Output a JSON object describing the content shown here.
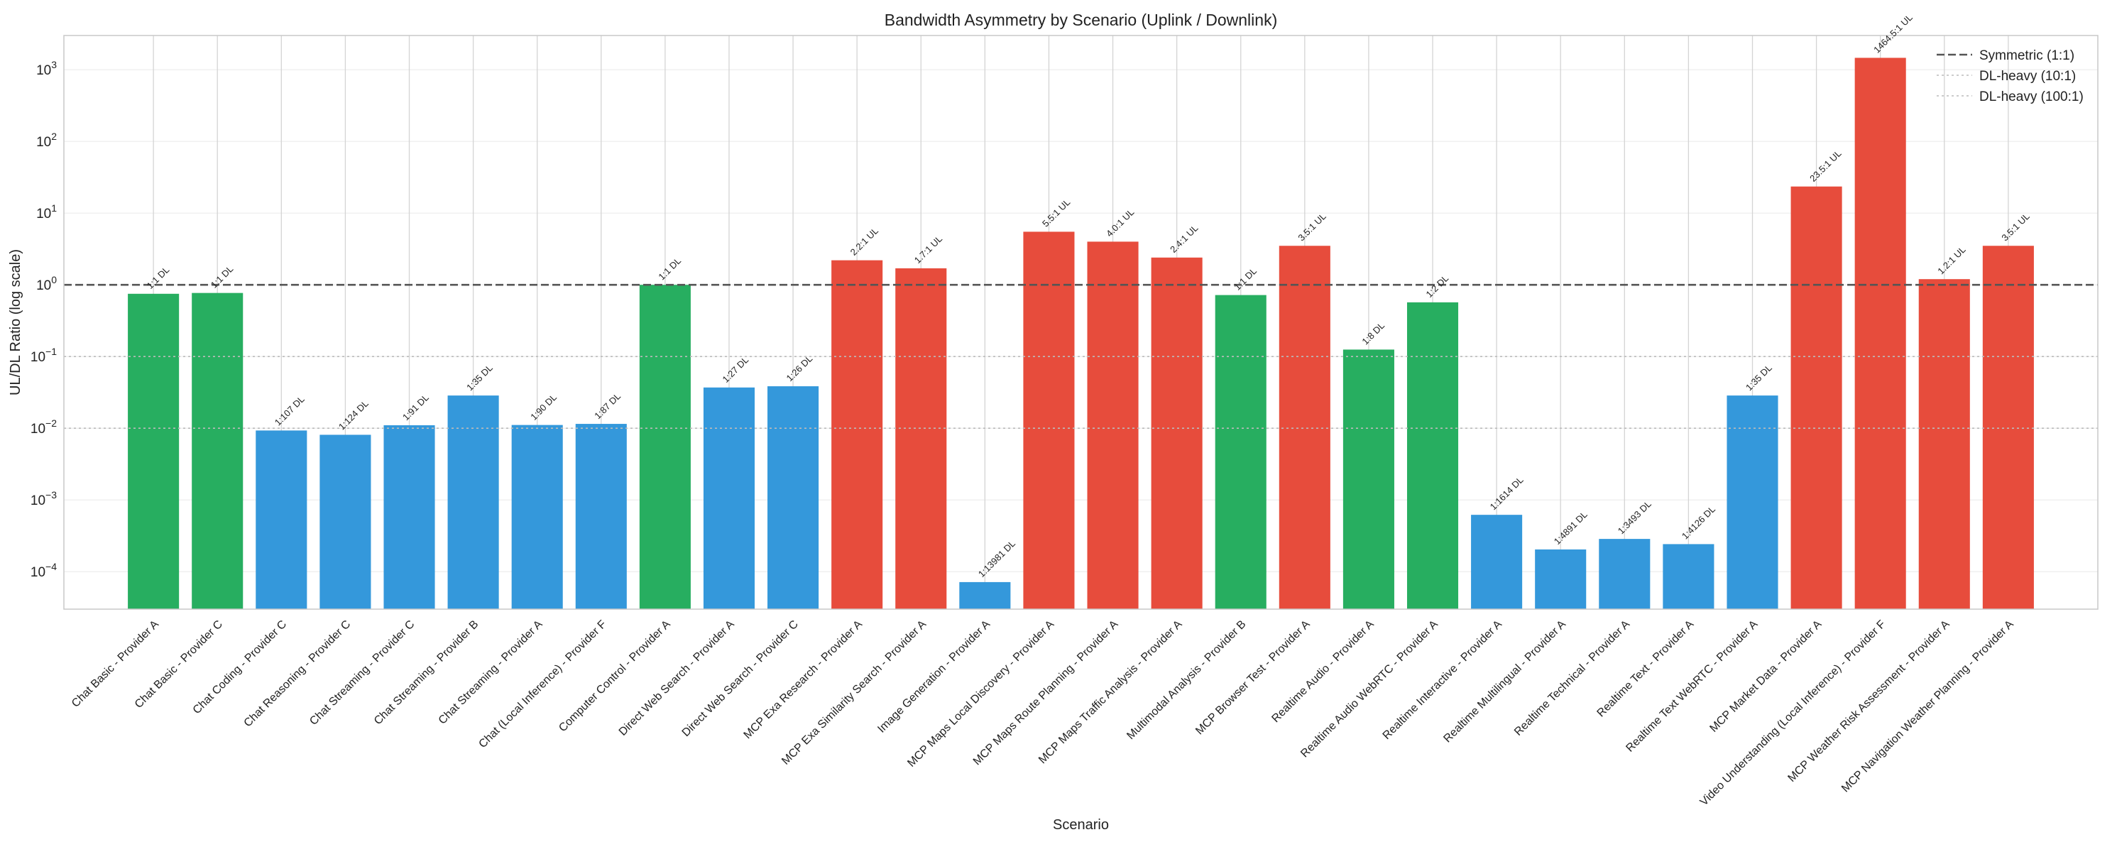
{
  "chart_data": {
    "type": "bar",
    "title": "Bandwidth Asymmetry by Scenario (Uplink / Downlink)",
    "xlabel": "Scenario",
    "ylabel": "UL/DL Ratio (log scale)",
    "yscale": "log",
    "ylim": [
      3e-05,
      3000
    ],
    "yticks": [
      {
        "value": 0.0001,
        "base": "10",
        "exp": "−4"
      },
      {
        "value": 0.001,
        "base": "10",
        "exp": "−3"
      },
      {
        "value": 0.01,
        "base": "10",
        "exp": "−2"
      },
      {
        "value": 0.1,
        "base": "10",
        "exp": "−1"
      },
      {
        "value": 1,
        "base": "10",
        "exp": "0"
      },
      {
        "value": 10,
        "base": "10",
        "exp": "1"
      },
      {
        "value": 100,
        "base": "10",
        "exp": "2"
      },
      {
        "value": 1000,
        "base": "10",
        "exp": "3"
      }
    ],
    "grid": true,
    "legend_position": "top-right",
    "colors": {
      "ul_heavy": "#e74c3c",
      "dl_heavy": "#3498db",
      "balanced": "#27ae60",
      "symmetric_line": "#555555",
      "reference_line": "#bbbbbb"
    },
    "reference_lines": [
      {
        "name": "Symmetric (1:1)",
        "value": 1,
        "style": "dashed-dark"
      },
      {
        "name": "DL-heavy (10:1)",
        "value": 0.1,
        "style": "dotted-light"
      },
      {
        "name": "DL-heavy (100:1)",
        "value": 0.01,
        "style": "dotted-light"
      }
    ],
    "bars": [
      {
        "category": "Chat Basic - Provider A",
        "value": 0.75,
        "label": "1:1 DL",
        "group": "balanced"
      },
      {
        "category": "Chat Basic - Provider C",
        "value": 0.77,
        "label": "1:1 DL",
        "group": "balanced"
      },
      {
        "category": "Chat Coding - Provider C",
        "value": 0.0093,
        "label": "1:107 DL",
        "group": "dl_heavy"
      },
      {
        "category": "Chat Reasoning - Provider C",
        "value": 0.0081,
        "label": "1:124 DL",
        "group": "dl_heavy"
      },
      {
        "category": "Chat Streaming - Provider C",
        "value": 0.011,
        "label": "1:91 DL",
        "group": "dl_heavy"
      },
      {
        "category": "Chat Streaming - Provider B",
        "value": 0.0286,
        "label": "1:35 DL",
        "group": "dl_heavy"
      },
      {
        "category": "Chat Streaming - Provider A",
        "value": 0.0111,
        "label": "1:90 DL",
        "group": "dl_heavy"
      },
      {
        "category": "Chat (Local Inference) - Provider F",
        "value": 0.0115,
        "label": "1:87 DL",
        "group": "dl_heavy"
      },
      {
        "category": "Computer Control - Provider A",
        "value": 1.0,
        "label": "1:1 DL",
        "group": "balanced"
      },
      {
        "category": "Direct Web Search - Provider A",
        "value": 0.037,
        "label": "1:27 DL",
        "group": "dl_heavy"
      },
      {
        "category": "Direct Web Search - Provider C",
        "value": 0.0385,
        "label": "1:26 DL",
        "group": "dl_heavy"
      },
      {
        "category": "MCP Exa Research - Provider A",
        "value": 2.2,
        "label": "2.2:1 UL",
        "group": "ul_heavy"
      },
      {
        "category": "MCP Exa Similarity Search - Provider A",
        "value": 1.7,
        "label": "1.7:1 UL",
        "group": "ul_heavy"
      },
      {
        "category": "Image Generation - Provider A",
        "value": 7.15e-05,
        "label": "1:13981 DL",
        "group": "dl_heavy"
      },
      {
        "category": "MCP Maps Local Discovery - Provider A",
        "value": 5.5,
        "label": "5.5:1 UL",
        "group": "ul_heavy"
      },
      {
        "category": "MCP Maps Route Planning - Provider A",
        "value": 4.0,
        "label": "4.0:1 UL",
        "group": "ul_heavy"
      },
      {
        "category": "MCP Maps Traffic Analysis - Provider A",
        "value": 2.4,
        "label": "2.4:1 UL",
        "group": "ul_heavy"
      },
      {
        "category": "Multimodal Analysis - Provider B",
        "value": 0.72,
        "label": "1:1 DL",
        "group": "balanced"
      },
      {
        "category": "MCP Browser Test - Provider A",
        "value": 3.5,
        "label": "3.5:1 UL",
        "group": "ul_heavy"
      },
      {
        "category": "Realtime Audio - Provider A",
        "value": 0.125,
        "label": "1:8 DL",
        "group": "balanced"
      },
      {
        "category": "Realtime Audio WebRTC - Provider A",
        "value": 0.57,
        "label": "1:2 DL",
        "group": "balanced"
      },
      {
        "category": "Realtime Interactive - Provider A",
        "value": 0.00062,
        "label": "1:1614 DL",
        "group": "dl_heavy"
      },
      {
        "category": "Realtime Multilingual - Provider A",
        "value": 0.000204,
        "label": "1:4891 DL",
        "group": "dl_heavy"
      },
      {
        "category": "Realtime Technical - Provider A",
        "value": 0.000286,
        "label": "1:3493 DL",
        "group": "dl_heavy"
      },
      {
        "category": "Realtime Text - Provider A",
        "value": 0.000242,
        "label": "1:4126 DL",
        "group": "dl_heavy"
      },
      {
        "category": "Realtime Text WebRTC - Provider A",
        "value": 0.0286,
        "label": "1:35 DL",
        "group": "dl_heavy"
      },
      {
        "category": "MCP Market Data - Provider A",
        "value": 23.5,
        "label": "23.5:1 UL",
        "group": "ul_heavy"
      },
      {
        "category": "Video Understanding (Local Inference) - Provider F",
        "value": 1464.5,
        "label": "1464.5:1 UL",
        "group": "ul_heavy"
      },
      {
        "category": "MCP Weather Risk Assessment - Provider A",
        "value": 1.2,
        "label": "1.2:1 UL",
        "group": "ul_heavy"
      },
      {
        "category": "MCP Navigation Weather Planning - Provider A",
        "value": 3.5,
        "label": "3.5:1 UL",
        "group": "ul_heavy"
      }
    ]
  }
}
